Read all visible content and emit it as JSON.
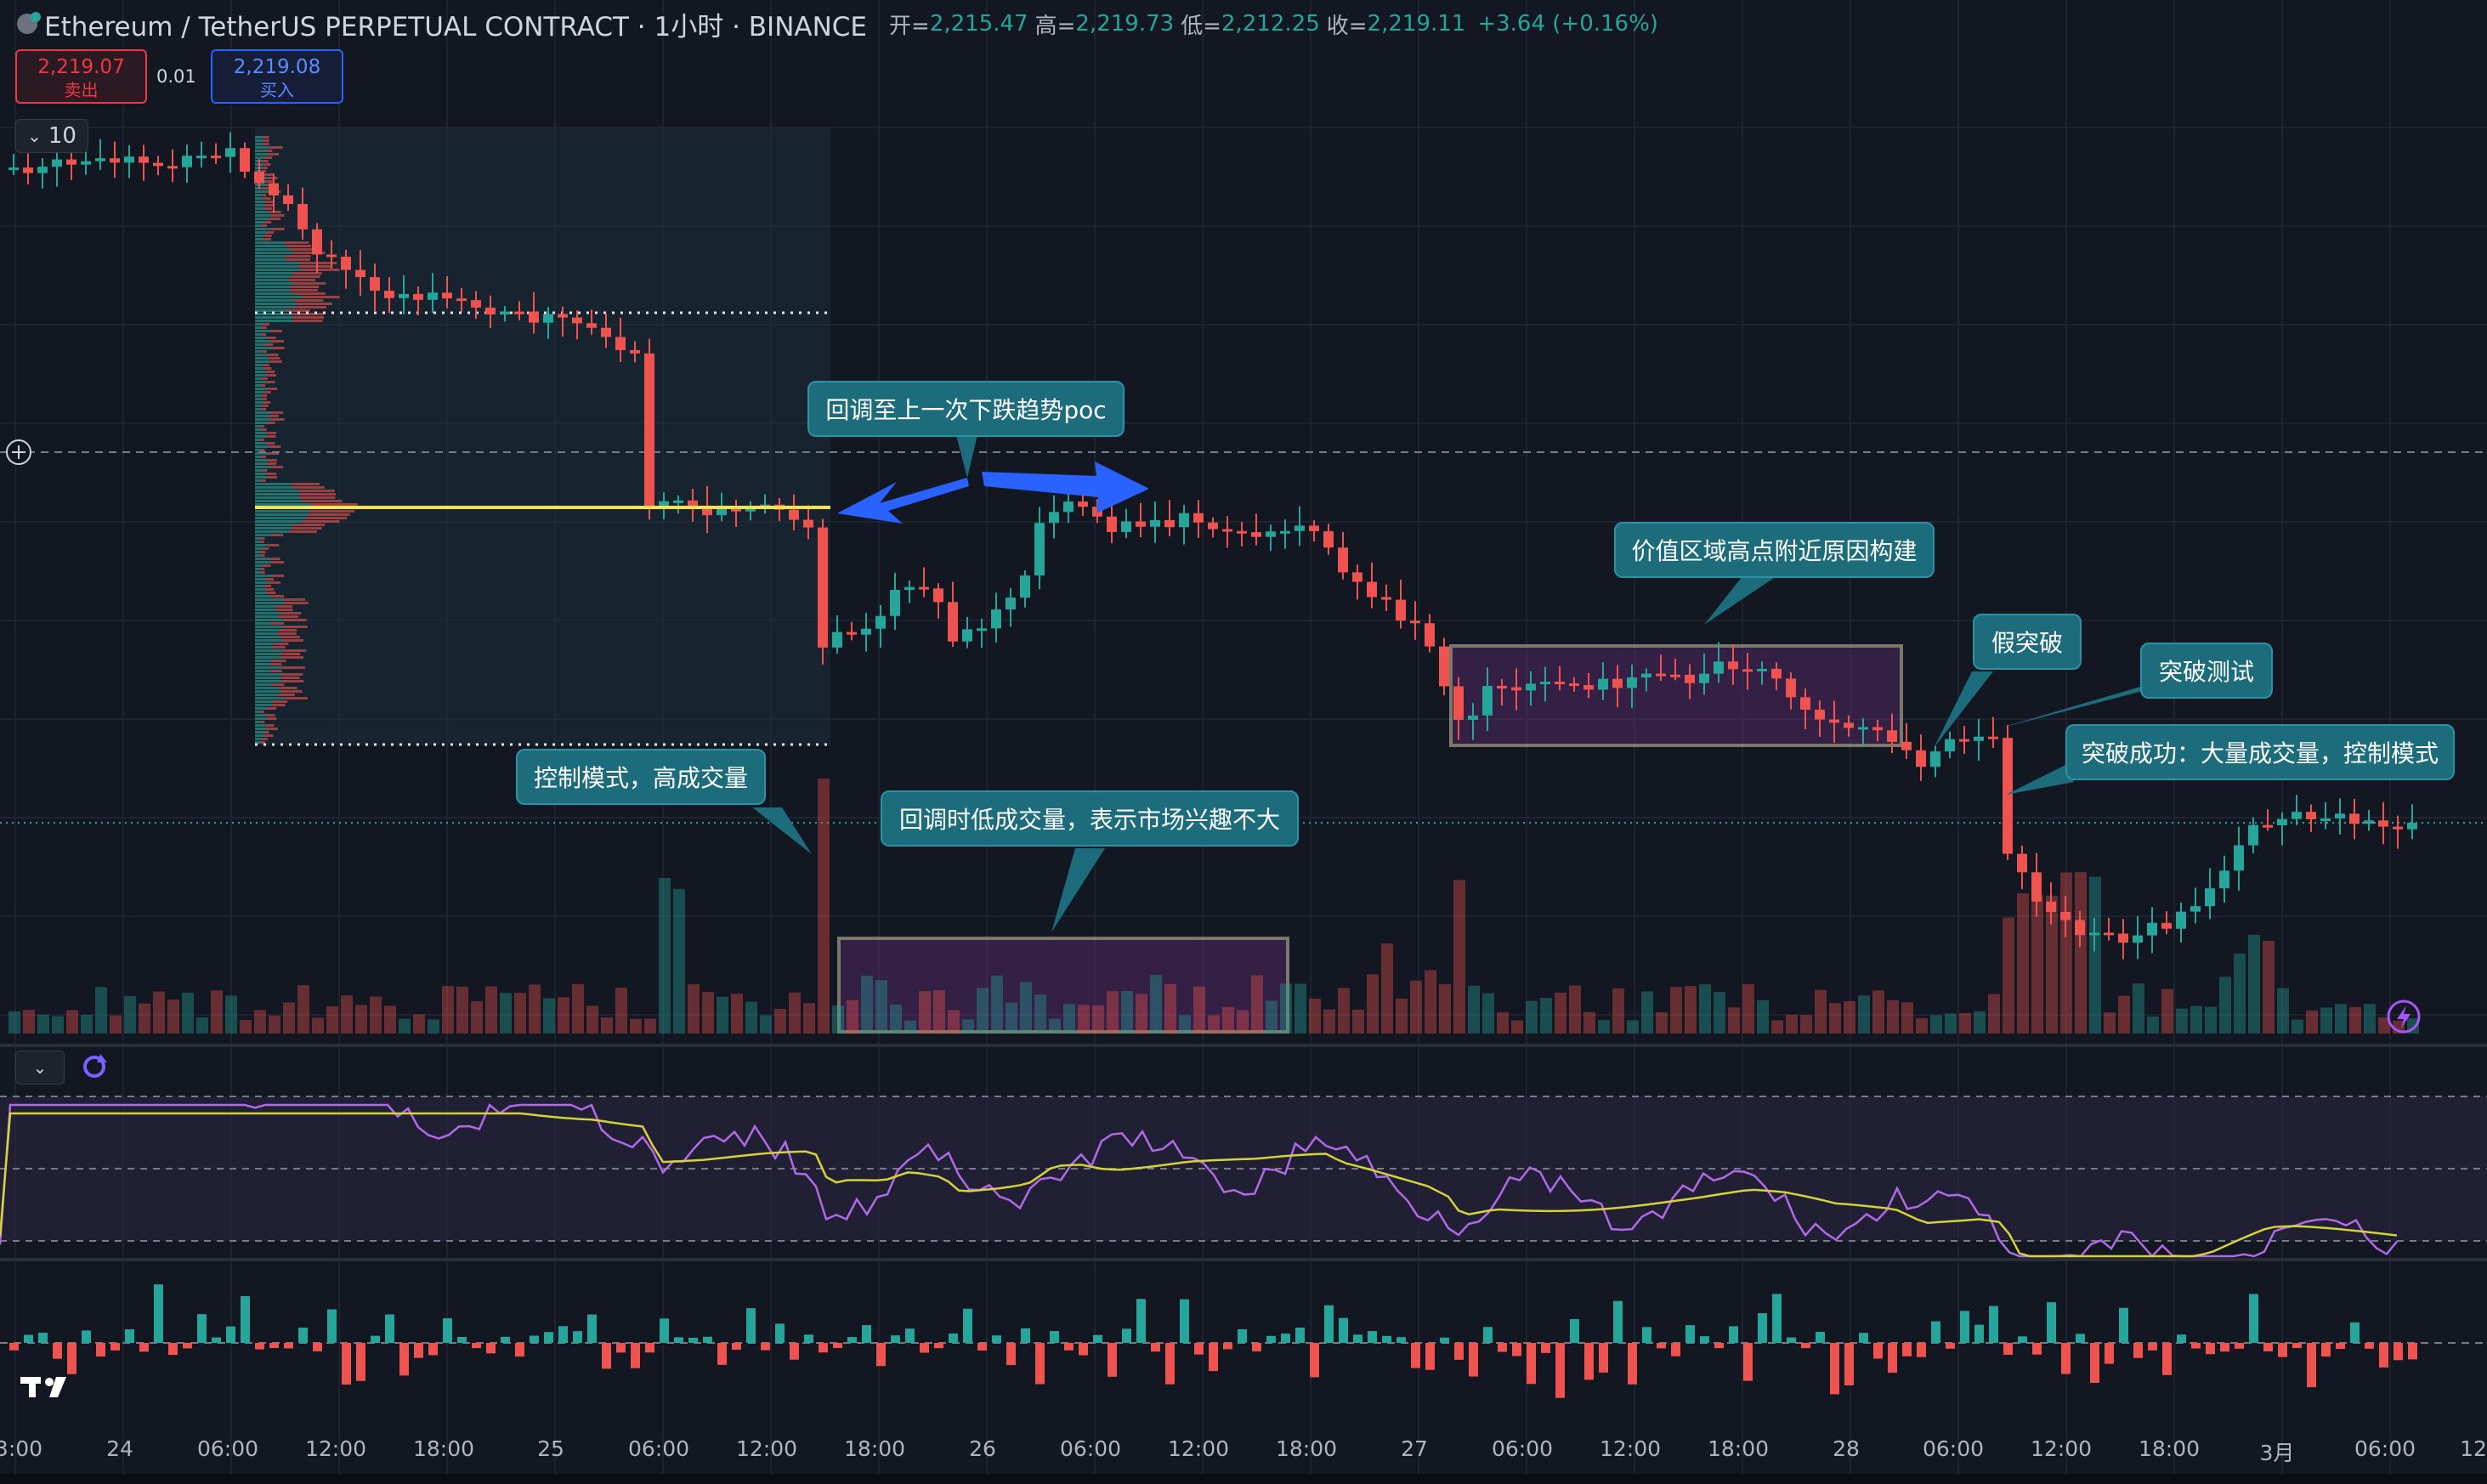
{
  "header": {
    "symbol": "Ethereum / TetherUS PERPETUAL CONTRACT · 1小时 · BINANCE",
    "open_label": "开=",
    "open": "2,215.47",
    "high_label": "高=",
    "high": "2,219.73",
    "low_label": "低=",
    "low": "2,212.25",
    "close_label": "收=",
    "close": "2,219.11",
    "change": "+3.64 (+0.16%)"
  },
  "trade": {
    "sell_price": "2,219.07",
    "sell_label": "卖出",
    "spread": "0.01",
    "buy_price": "2,219.08",
    "buy_label": "买入"
  },
  "indicator_toggle": {
    "value": "10"
  },
  "annotations": {
    "poc_retrace": "回调至上一次下跌趋势poc",
    "control_high_volume": "控制模式，高成交量",
    "low_volume_retrace": "回调时低成交量，表示市场兴趣不大",
    "value_area_build": "价值区域高点附近原因构建",
    "false_breakout": "假突破",
    "breakout_test": "突破测试",
    "breakout_success": "突破成功：大量成交量，控制模式"
  },
  "time_axis": [
    "3:00",
    "24",
    "06:00",
    "12:00",
    "18:00",
    "25",
    "06:00",
    "12:00",
    "18:00",
    "26",
    "06:00",
    "12:00",
    "18:00",
    "27",
    "06:00",
    "12:00",
    "18:00",
    "28",
    "06:00",
    "12:00",
    "18:00",
    "3月",
    "06:00",
    "12"
  ],
  "colors": {
    "up": "#26a69a",
    "down": "#ef5350",
    "background": "#131722",
    "poc": "#f6e34c",
    "rsi": "#b06ae8",
    "rsi_ma": "#d4d43a"
  },
  "icons": {
    "logo": "tradingview-logo-icon",
    "chevron": "chevron-down-icon",
    "sync": "sync-icon",
    "crosshair": "crosshair-plus-icon",
    "bolt": "lightning-icon"
  }
}
